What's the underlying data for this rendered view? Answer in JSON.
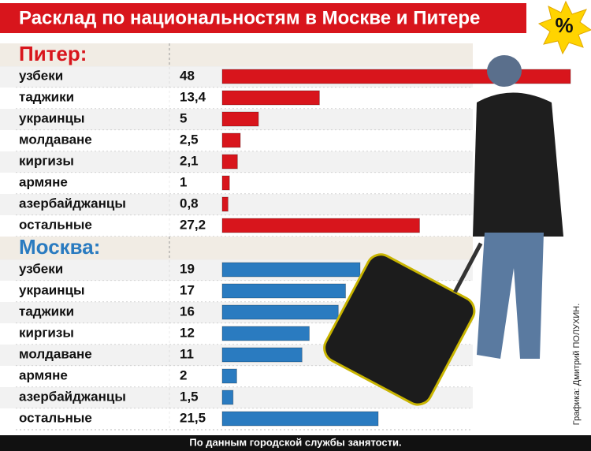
{
  "header": {
    "title": "Расклад по национальностям в Москве и Питере",
    "badge": "%"
  },
  "chart_data": [
    {
      "type": "bar",
      "title": "Питер:",
      "color": "#d8151c",
      "categories": [
        "узбеки",
        "таджики",
        "украинцы",
        "молдаване",
        "киргизы",
        "армяне",
        "азербайджанцы",
        "остальные"
      ],
      "values": [
        48,
        13.4,
        5,
        2.5,
        2.1,
        1,
        0.8,
        27.2
      ],
      "value_labels": [
        "48",
        "13,4",
        "5",
        "2,5",
        "2,1",
        "1",
        "0,8",
        "27,2"
      ]
    },
    {
      "type": "bar",
      "title": "Москва:",
      "color": "#2a7bc0",
      "categories": [
        "узбеки",
        "украинцы",
        "таджики",
        "киргизы",
        "молдаване",
        "армяне",
        "азербайджанцы",
        "остальные"
      ],
      "values": [
        19,
        17,
        16,
        12,
        11,
        2,
        1.5,
        21.5
      ],
      "value_labels": [
        "19",
        "17",
        "16",
        "12",
        "11",
        "2",
        "1,5",
        "21,5"
      ]
    }
  ],
  "footer": "По данным городской службы занятости.",
  "credit": "Графика: Дмитрий ПОЛУХИН."
}
